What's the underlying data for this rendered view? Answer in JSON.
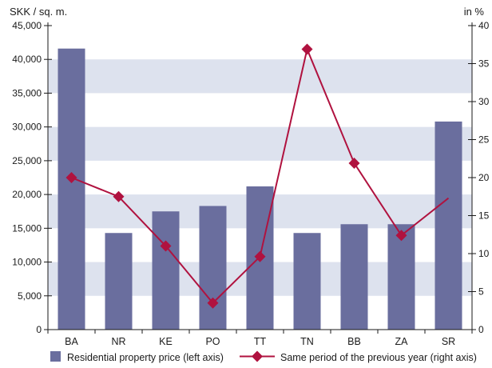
{
  "chart_data": {
    "type": "bar",
    "left_axis_unit": "SKK / sq. m.",
    "right_axis_unit": "in %",
    "categories": [
      "BA",
      "NR",
      "KE",
      "PO",
      "TT",
      "TN",
      "BB",
      "ZA",
      "SR"
    ],
    "left_ylim": [
      0,
      45000
    ],
    "left_ticks": [
      "0",
      "5,000",
      "10,000",
      "15,000",
      "20,000",
      "25,000",
      "30,000",
      "35,000",
      "40,000",
      "45,000"
    ],
    "right_ylim": [
      0,
      40
    ],
    "right_ticks": [
      "0",
      "5",
      "10",
      "15",
      "20",
      "25",
      "30",
      "35",
      "40"
    ],
    "series": [
      {
        "name": "Residential property price (left axis)",
        "type": "bar",
        "axis": "left",
        "color": "#6a6e9e",
        "values": [
          41600,
          14300,
          17500,
          18300,
          21200,
          14300,
          15600,
          15600,
          30800
        ]
      },
      {
        "name": "Same period of the previous year (right axis)",
        "type": "line",
        "axis": "right",
        "color": "#b0123f",
        "values": [
          20.0,
          17.5,
          11.0,
          3.5,
          9.6,
          36.9,
          21.9,
          12.4,
          17.3
        ],
        "markers_on": [
          true,
          true,
          true,
          true,
          true,
          true,
          true,
          true,
          false
        ]
      }
    ],
    "band_color": "#dde2ee",
    "legend_position": "bottom"
  }
}
